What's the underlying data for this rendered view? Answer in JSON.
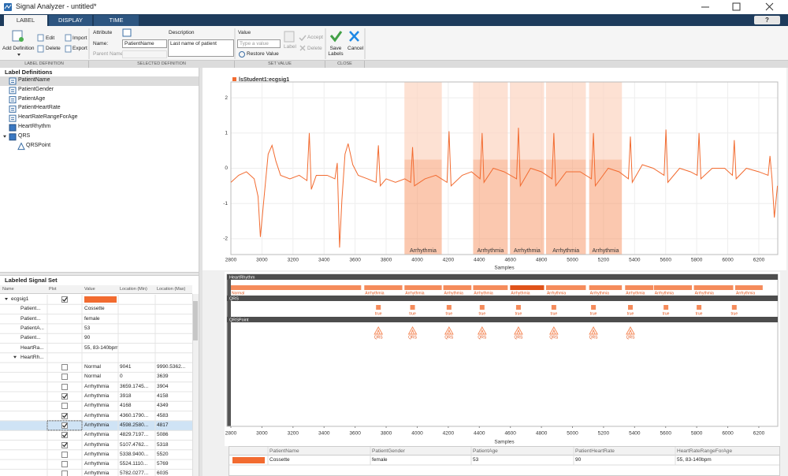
{
  "window": {
    "title": "Signal Analyzer - untitled*",
    "help_button": "?"
  },
  "tabs": [
    "LABEL",
    "DISPLAY",
    "TIME"
  ],
  "toolstrip": {
    "label_definition": {
      "add": "Add Definition",
      "edit": "Edit",
      "delete": "Delete",
      "import": "Import",
      "export": "Export",
      "section": "LABEL DEFINITION"
    },
    "selected_definition": {
      "attribute": "Attribute",
      "name_label": "Name:",
      "name_value": "PatientName",
      "parent_label": "Parent Name:",
      "description_label": "Description",
      "description_value": "Last name of patient",
      "section": "SELECTED DEFINITION"
    },
    "set_value": {
      "value_label": "Value",
      "placeholder": "Type a value",
      "restore": "Restore Value",
      "label": "Label",
      "accept": "Accept",
      "delete": "Delete",
      "section": "SET VALUE"
    },
    "close": {
      "save": "Save Labels",
      "cancel": "Cancel",
      "section": "CLOSE"
    }
  },
  "label_definitions": {
    "title": "Label Definitions",
    "items": [
      "PatientName",
      "PatientGender",
      "PatientAge",
      "PatientHeartRate",
      "HeartRateRangeForAge",
      "HeartRhythm",
      "QRS",
      "QRSPoint"
    ]
  },
  "labeled_signal_set": {
    "title": "Labeled Signal Set",
    "columns": [
      "Name",
      "Plot",
      "Value",
      "Location (Min)",
      "Location (Max)"
    ],
    "selected_row": 13,
    "rows": [
      {
        "name": "ecgsig1",
        "plot": true,
        "color": "#f26b30"
      },
      {
        "name": "Patient...",
        "value": "Cossette"
      },
      {
        "name": "Patient...",
        "value": "female"
      },
      {
        "name": "PatientA...",
        "value": "53"
      },
      {
        "name": "Patient...",
        "value": "90"
      },
      {
        "name": "HeartRa...",
        "value": "55, 83-140bpm"
      },
      {
        "name": "HeartRh..."
      },
      {
        "plot": false,
        "value": "Normal",
        "min": "9041",
        "max": "9990.5362..."
      },
      {
        "plot": false,
        "value": "Normal",
        "min": "0",
        "max": "3639"
      },
      {
        "plot": false,
        "value": "Arrhythmia",
        "min": "3659.1745...",
        "max": "3904"
      },
      {
        "plot": true,
        "value": "Arrhythmia",
        "min": "3918",
        "max": "4158"
      },
      {
        "plot": false,
        "value": "Arrhythmia",
        "min": "4168",
        "max": "4349"
      },
      {
        "plot": true,
        "value": "Arrhythmia",
        "min": "4360.1790...",
        "max": "4583"
      },
      {
        "plot": true,
        "value": "Arrhythmia",
        "min": "4598.2580...",
        "max": "4817"
      },
      {
        "plot": true,
        "value": "Arrhythmia",
        "min": "4829.7197...",
        "max": "5086"
      },
      {
        "plot": true,
        "value": "Arrhythmia",
        "min": "5107.4762...",
        "max": "5318"
      },
      {
        "plot": false,
        "value": "Arrhythmia",
        "min": "5338.9400...",
        "max": "5520"
      },
      {
        "plot": false,
        "value": "Arrhythmia",
        "min": "5524.1110...",
        "max": "5769"
      },
      {
        "plot": false,
        "value": "Arrhythmia",
        "min": "5782.0277...",
        "max": "6035"
      }
    ]
  },
  "chart_data": [
    {
      "type": "line",
      "xlabel": "Samples",
      "xlim": [
        2800,
        6322
      ],
      "xticks": [
        2800,
        3000,
        3200,
        3400,
        3600,
        3800,
        4000,
        4200,
        4400,
        4600,
        4800,
        5000,
        5200,
        5400,
        5600,
        5800,
        6000,
        6200
      ],
      "ylim": [
        -2.45,
        2.45
      ],
      "yticks": [
        -2,
        -1,
        0,
        1,
        2
      ],
      "grid": true,
      "x": [
        2800,
        2850,
        2900,
        2950,
        2975,
        2990,
        3010,
        3040,
        3065,
        3090,
        3120,
        3180,
        3240,
        3290,
        3305,
        3318,
        3350,
        3420,
        3470,
        3485,
        3500,
        3515,
        3535,
        3555,
        3585,
        3620,
        3680,
        3735,
        3750,
        3762,
        3800,
        3860,
        3920,
        3958,
        3970,
        3982,
        4050,
        4120,
        4192,
        4205,
        4218,
        4290,
        4350,
        4405,
        4418,
        4430,
        4490,
        4560,
        4640,
        4652,
        4664,
        4730,
        4800,
        4868,
        4880,
        4892,
        4960,
        5050,
        5122,
        5135,
        5147,
        5230,
        5300,
        5360,
        5373,
        5385,
        5450,
        5520,
        5590,
        5602,
        5614,
        5690,
        5760,
        5803,
        5815,
        5827,
        5900,
        5980,
        6030,
        6042,
        6054,
        6120,
        6200,
        6260,
        6272,
        6285,
        6300,
        6320
      ],
      "series": [
        {
          "name": "lsStudent1:ecgsig1",
          "color": "#f26b30",
          "values": [
            -0.4,
            -0.2,
            -0.1,
            -0.3,
            -0.8,
            -1.95,
            -1.0,
            0.4,
            0.65,
            0.2,
            -0.2,
            -0.3,
            -0.2,
            -0.35,
            1.0,
            -0.6,
            -0.2,
            -0.2,
            -0.3,
            0.15,
            -2.25,
            -0.9,
            0.4,
            0.7,
            0.1,
            -0.2,
            -0.3,
            -0.4,
            0.65,
            -0.5,
            -0.3,
            -0.4,
            -0.3,
            -0.4,
            0.6,
            -0.5,
            -0.3,
            -0.2,
            -0.4,
            1.05,
            -0.5,
            -0.2,
            -0.1,
            -0.3,
            1.0,
            -0.4,
            0.0,
            -0.1,
            -0.3,
            1.15,
            -0.5,
            0.0,
            -0.1,
            -0.3,
            1.0,
            -0.5,
            -0.1,
            -0.1,
            -0.3,
            1.0,
            -0.5,
            0.0,
            -0.1,
            -0.3,
            0.9,
            -0.4,
            0.1,
            0.0,
            -0.2,
            1.1,
            -0.4,
            0.0,
            -0.1,
            -0.2,
            1.0,
            -0.3,
            0.0,
            0.0,
            -0.2,
            0.8,
            -0.3,
            0.0,
            -0.1,
            -0.2,
            0.35,
            -0.3,
            -1.4,
            -0.5
          ]
        }
      ],
      "region_color": "#f79b6e",
      "regions": [
        {
          "label": "Arrhythmia",
          "start": 3918,
          "end": 4158
        },
        {
          "label": "Arrhythmia",
          "start": 4360.179,
          "end": 4583
        },
        {
          "label": "Arrhythmia",
          "start": 4598.258,
          "end": 4817
        },
        {
          "label": "Arrhythmia",
          "start": 4829.7197,
          "end": 5086
        },
        {
          "label": "Arrhythmia",
          "start": 5107.4762,
          "end": 5318
        }
      ]
    },
    {
      "type": "label-timeline",
      "xlabel": "Samples",
      "xlim": [
        2800,
        6322
      ],
      "xticks": [
        2800,
        3000,
        3200,
        3400,
        3600,
        3800,
        4000,
        4200,
        4400,
        4600,
        4800,
        5000,
        5200,
        5400,
        5600,
        5800,
        6000,
        6200
      ],
      "color": "#f58b5b",
      "selected_color": "#e0531a",
      "selected_segment": 5,
      "tracks": [
        {
          "name": "HeartRhythm",
          "kind": "roi",
          "segments": [
            {
              "label": "Normal",
              "start": 0,
              "end": 3639
            },
            {
              "label": "Arrhythmia",
              "start": 3659.1745,
              "end": 3904
            },
            {
              "label": "Arrhythmia",
              "start": 3918,
              "end": 4158
            },
            {
              "label": "Arrhythmia",
              "start": 4168,
              "end": 4349
            },
            {
              "label": "Arrhythmia",
              "start": 4360.179,
              "end": 4583
            },
            {
              "label": "Arrhythmia",
              "start": 4598.258,
              "end": 4817
            },
            {
              "label": "Arrhythmia",
              "start": 4829.7197,
              "end": 5086
            },
            {
              "label": "Arrhythmia",
              "start": 5107.4762,
              "end": 5318
            },
            {
              "label": "Arrhythmia",
              "start": 5338.94,
              "end": 5520
            },
            {
              "label": "Arrhythmia",
              "start": 5524.111,
              "end": 5769
            },
            {
              "label": "Arrhythmia",
              "start": 5782.0277,
              "end": 6035
            },
            {
              "label": "Arrhythmia",
              "start": 6048,
              "end": 6225
            }
          ]
        },
        {
          "name": "QRS",
          "kind": "attribute",
          "points": [
            {
              "label": "true",
              "x": 3750
            },
            {
              "label": "true",
              "x": 3970
            },
            {
              "label": "true",
              "x": 4205
            },
            {
              "label": "true",
              "x": 4418
            },
            {
              "label": "true",
              "x": 4652
            },
            {
              "label": "true",
              "x": 4880
            },
            {
              "label": "true",
              "x": 5135
            },
            {
              "label": "true",
              "x": 5373
            },
            {
              "label": "true",
              "x": 5602
            },
            {
              "label": "true",
              "x": 5815
            },
            {
              "label": "true",
              "x": 6042
            }
          ]
        },
        {
          "name": "QRSPoint",
          "kind": "point",
          "points": [
            {
              "label": "QRS",
              "x": 3750
            },
            {
              "label": "QRS",
              "x": 3970
            },
            {
              "label": "QRS",
              "x": 4205
            },
            {
              "label": "QRS",
              "x": 4418
            },
            {
              "label": "QRS",
              "x": 4652
            },
            {
              "label": "QRS",
              "x": 4880
            },
            {
              "label": "QRS",
              "x": 5135
            },
            {
              "label": "QRS",
              "x": 5373
            }
          ]
        }
      ]
    }
  ],
  "summary_table": {
    "columns": [
      "PatientName",
      "PatientGender",
      "PatientAge",
      "PatientHeartRate",
      "HeartRateRangeForAge"
    ],
    "rows": [
      {
        "color": "#f26b30",
        "cells": [
          "Cossette",
          "female",
          "53",
          "90",
          "55, 83-140bpm"
        ]
      }
    ]
  }
}
